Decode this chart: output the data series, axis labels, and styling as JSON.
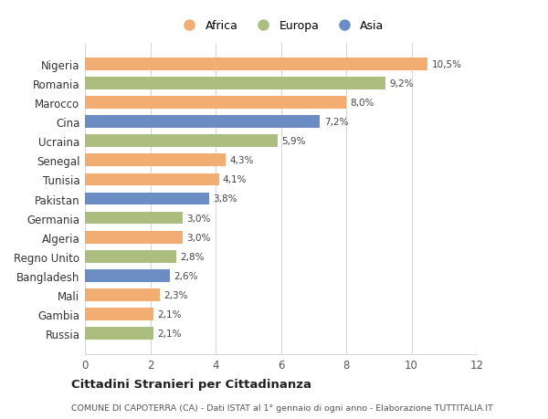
{
  "categories": [
    "Russia",
    "Gambia",
    "Mali",
    "Bangladesh",
    "Regno Unito",
    "Algeria",
    "Germania",
    "Pakistan",
    "Tunisia",
    "Senegal",
    "Ucraina",
    "Cina",
    "Marocco",
    "Romania",
    "Nigeria"
  ],
  "values": [
    2.1,
    2.1,
    2.3,
    2.6,
    2.8,
    3.0,
    3.0,
    3.8,
    4.1,
    4.3,
    5.9,
    7.2,
    8.0,
    9.2,
    10.5
  ],
  "labels": [
    "2,1%",
    "2,1%",
    "2,3%",
    "2,6%",
    "2,8%",
    "3,0%",
    "3,0%",
    "3,8%",
    "4,1%",
    "4,3%",
    "5,9%",
    "7,2%",
    "8,0%",
    "9,2%",
    "10,5%"
  ],
  "continents": [
    "Europa",
    "Africa",
    "Africa",
    "Asia",
    "Europa",
    "Africa",
    "Europa",
    "Asia",
    "Africa",
    "Africa",
    "Europa",
    "Asia",
    "Africa",
    "Europa",
    "Africa"
  ],
  "colors": {
    "Africa": "#F2AE72",
    "Europa": "#ABBE80",
    "Asia": "#6B8DC4"
  },
  "legend_order": [
    "Africa",
    "Europa",
    "Asia"
  ],
  "xlim": [
    0,
    12
  ],
  "xticks": [
    0,
    2,
    4,
    6,
    8,
    10,
    12
  ],
  "title_main": "Cittadini Stranieri per Cittadinanza",
  "title_sub": "COMUNE DI CAPOTERRA (CA) - Dati ISTAT al 1° gennaio di ogni anno - Elaborazione TUTTITALIA.IT",
  "background_color": "#ffffff",
  "grid_color": "#d8d8d8",
  "bar_height": 0.65
}
